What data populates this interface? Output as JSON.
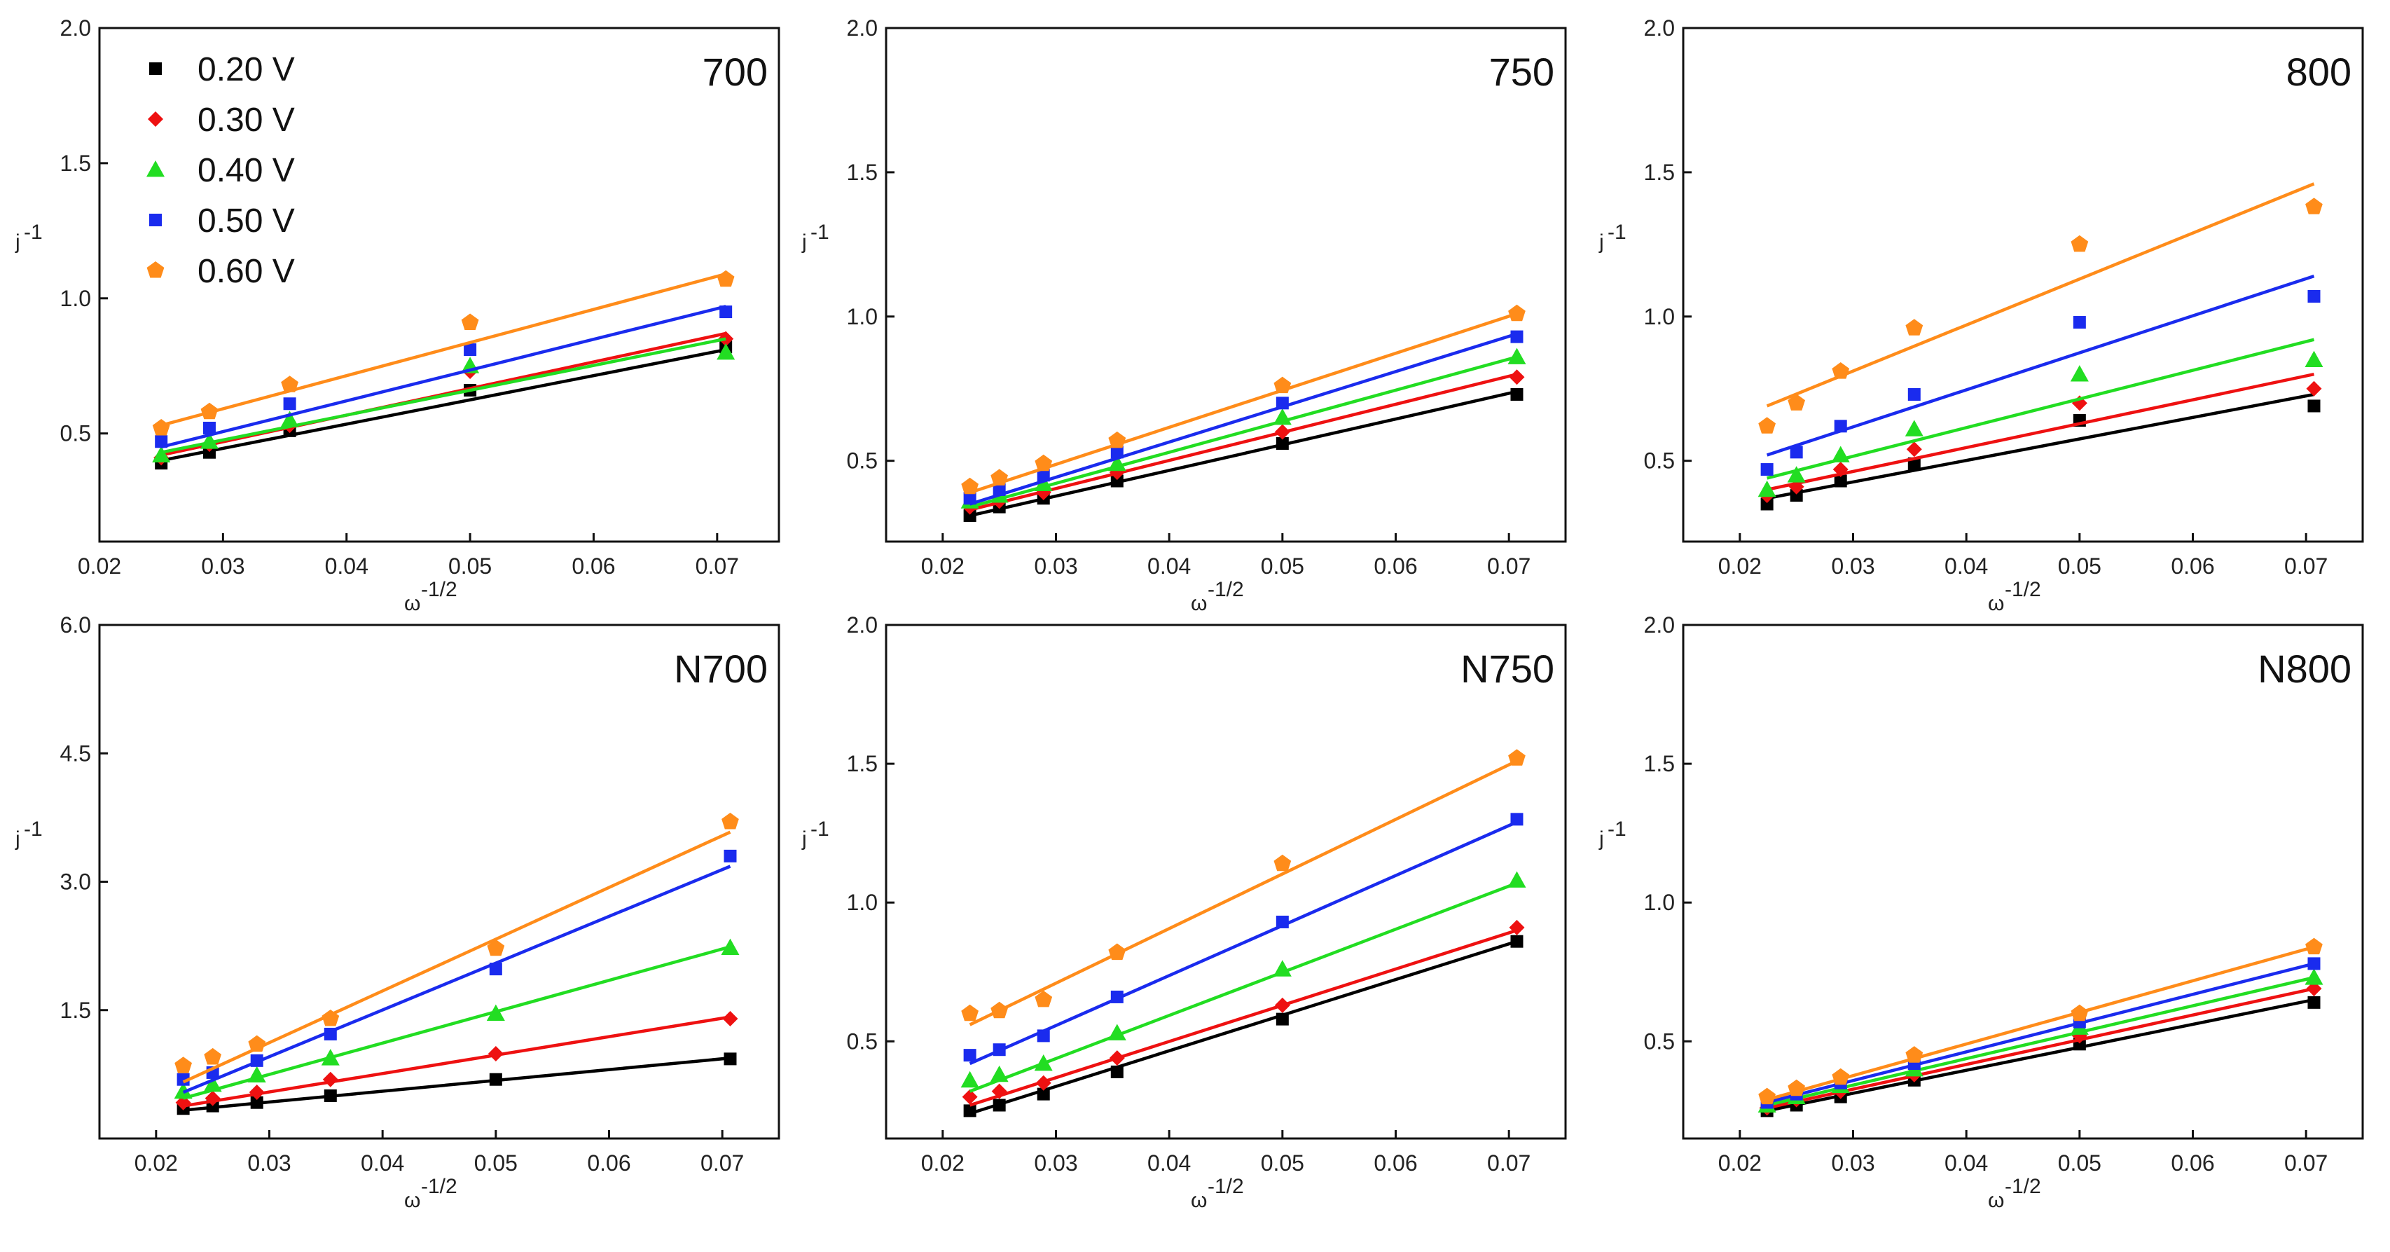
{
  "colors": {
    "0.20 V": "#000000",
    "0.30 V": "#ee1111",
    "0.40 V": "#22dd22",
    "0.50 V": "#1a2bee",
    "0.60 V": "#ff8c1a"
  },
  "legend": {
    "entries": [
      {
        "label": "0.20 V",
        "marker": "square"
      },
      {
        "label": "0.30 V",
        "marker": "diamond"
      },
      {
        "label": "0.40 V",
        "marker": "triangle"
      },
      {
        "label": "0.50 V",
        "marker": "square"
      },
      {
        "label": "0.60 V",
        "marker": "pentagon"
      }
    ]
  },
  "chart_data": [
    {
      "type": "scatter",
      "title": "700",
      "xlabel": "ω",
      "xlabel_sup": "-1/2",
      "ylabel": "j",
      "ylabel_sup": "-1",
      "xlim": [
        0.02,
        0.075
      ],
      "ylim": [
        0.1,
        2.0
      ],
      "xticks": [
        "0.02",
        "0.03",
        "0.04",
        "0.05",
        "0.06",
        "0.07"
      ],
      "yticks": [
        "0.5",
        "1.0",
        "1.5",
        "2.0"
      ],
      "x": [
        0.025,
        0.0289,
        0.0354,
        0.05,
        0.0707
      ],
      "series": [
        {
          "name": "0.20 V",
          "values": [
            0.39,
            0.43,
            0.51,
            0.66,
            0.82
          ],
          "fit": [
            [
              0.025,
              0.4
            ],
            [
              0.0707,
              0.81
            ]
          ]
        },
        {
          "name": "0.30 V",
          "values": [
            0.41,
            0.46,
            0.53,
            0.73,
            0.85
          ],
          "fit": [
            [
              0.025,
              0.42
            ],
            [
              0.0707,
              0.87
            ]
          ]
        },
        {
          "name": "0.40 V",
          "values": [
            0.42,
            0.47,
            0.55,
            0.75,
            0.8
          ],
          "fit": [
            [
              0.025,
              0.43
            ],
            [
              0.0707,
              0.85
            ]
          ]
        },
        {
          "name": "0.50 V",
          "values": [
            0.47,
            0.52,
            0.61,
            0.81,
            0.95
          ],
          "fit": [
            [
              0.025,
              0.45
            ],
            [
              0.0707,
              0.97
            ]
          ]
        },
        {
          "name": "0.60 V",
          "values": [
            0.52,
            0.58,
            0.68,
            0.91,
            1.07
          ],
          "fit": [
            [
              0.025,
              0.53
            ],
            [
              0.0707,
              1.09
            ]
          ]
        }
      ]
    },
    {
      "type": "scatter",
      "title": "750",
      "xlabel": "ω",
      "xlabel_sup": "-1/2",
      "ylabel": "j",
      "ylabel_sup": "-1",
      "xlim": [
        0.015,
        0.075
      ],
      "ylim": [
        0.22,
        2.0
      ],
      "xticks": [
        "0.02",
        "0.03",
        "0.04",
        "0.05",
        "0.06",
        "0.07"
      ],
      "yticks": [
        "0.5",
        "1.0",
        "1.5",
        "2.0"
      ],
      "x": [
        0.0224,
        0.025,
        0.0289,
        0.0354,
        0.05,
        0.0707
      ],
      "series": [
        {
          "name": "0.20 V",
          "values": [
            0.31,
            0.34,
            0.37,
            0.43,
            0.56,
            0.73
          ],
          "fit": [
            [
              0.0224,
              0.31
            ],
            [
              0.0707,
              0.74
            ]
          ]
        },
        {
          "name": "0.30 V",
          "values": [
            0.34,
            0.36,
            0.39,
            0.46,
            0.6,
            0.79
          ],
          "fit": [
            [
              0.0224,
              0.33
            ],
            [
              0.0707,
              0.8
            ]
          ]
        },
        {
          "name": "0.40 V",
          "values": [
            0.36,
            0.38,
            0.42,
            0.49,
            0.65,
            0.86
          ],
          "fit": [
            [
              0.0224,
              0.34
            ],
            [
              0.0707,
              0.86
            ]
          ]
        },
        {
          "name": "0.50 V",
          "values": [
            0.37,
            0.4,
            0.45,
            0.53,
            0.7,
            0.93
          ],
          "fit": [
            [
              0.0224,
              0.35
            ],
            [
              0.0707,
              0.94
            ]
          ]
        },
        {
          "name": "0.60 V",
          "values": [
            0.41,
            0.44,
            0.49,
            0.57,
            0.76,
            1.01
          ],
          "fit": [
            [
              0.0224,
              0.39
            ],
            [
              0.0707,
              1.01
            ]
          ]
        }
      ]
    },
    {
      "type": "scatter",
      "title": "800",
      "xlabel": "ω",
      "xlabel_sup": "-1/2",
      "ylabel": "j",
      "ylabel_sup": "-1",
      "xlim": [
        0.015,
        0.075
      ],
      "ylim": [
        0.22,
        2.0
      ],
      "xticks": [
        "0.02",
        "0.03",
        "0.04",
        "0.05",
        "0.06",
        "0.07"
      ],
      "yticks": [
        "0.5",
        "1.0",
        "1.5",
        "2.0"
      ],
      "x": [
        0.0224,
        0.025,
        0.0289,
        0.0354,
        0.05,
        0.0707
      ],
      "series": [
        {
          "name": "0.20 V",
          "values": [
            0.35,
            0.38,
            0.43,
            0.49,
            0.64,
            0.69
          ],
          "fit": [
            [
              0.0224,
              0.37
            ],
            [
              0.0707,
              0.73
            ]
          ]
        },
        {
          "name": "0.30 V",
          "values": [
            0.38,
            0.41,
            0.47,
            0.54,
            0.7,
            0.75
          ],
          "fit": [
            [
              0.0224,
              0.4
            ],
            [
              0.0707,
              0.8
            ]
          ]
        },
        {
          "name": "0.40 V",
          "values": [
            0.4,
            0.45,
            0.52,
            0.61,
            0.8,
            0.85
          ],
          "fit": [
            [
              0.0224,
              0.44
            ],
            [
              0.0707,
              0.92
            ]
          ]
        },
        {
          "name": "0.50 V",
          "values": [
            0.47,
            0.53,
            0.62,
            0.73,
            0.98,
            1.07
          ],
          "fit": [
            [
              0.0224,
              0.52
            ],
            [
              0.0707,
              1.14
            ]
          ]
        },
        {
          "name": "0.60 V",
          "values": [
            0.62,
            0.7,
            0.81,
            0.96,
            1.25,
            1.38
          ],
          "fit": [
            [
              0.0224,
              0.69
            ],
            [
              0.0707,
              1.46
            ]
          ]
        }
      ]
    },
    {
      "type": "scatter",
      "title": "N700",
      "xlabel": "ω",
      "xlabel_sup": "-1/2",
      "ylabel": "j",
      "ylabel_sup": "-1",
      "xlim": [
        0.015,
        0.075
      ],
      "ylim": [
        0.0,
        6.0
      ],
      "xticks": [
        "0.02",
        "0.03",
        "0.04",
        "0.05",
        "0.06",
        "0.07"
      ],
      "yticks": [
        "1.5",
        "3.0",
        "4.5",
        "6.0"
      ],
      "x": [
        0.0224,
        0.025,
        0.0289,
        0.0354,
        0.05,
        0.0707
      ],
      "series": [
        {
          "name": "0.20 V",
          "values": [
            0.35,
            0.38,
            0.42,
            0.5,
            0.69,
            0.93
          ],
          "fit": [
            [
              0.0224,
              0.33
            ],
            [
              0.0707,
              0.94
            ]
          ]
        },
        {
          "name": "0.30 V",
          "values": [
            0.42,
            0.47,
            0.54,
            0.69,
            0.99,
            1.4
          ],
          "fit": [
            [
              0.0224,
              0.38
            ],
            [
              0.0707,
              1.42
            ]
          ]
        },
        {
          "name": "0.40 V",
          "values": [
            0.55,
            0.63,
            0.74,
            0.94,
            1.46,
            2.23
          ],
          "fit": [
            [
              0.0224,
              0.47
            ],
            [
              0.0707,
              2.24
            ]
          ]
        },
        {
          "name": "0.50 V",
          "values": [
            0.69,
            0.77,
            0.91,
            1.22,
            1.98,
            3.3
          ],
          "fit": [
            [
              0.0224,
              0.54
            ],
            [
              0.0707,
              3.18
            ]
          ]
        },
        {
          "name": "0.60 V",
          "values": [
            0.85,
            0.95,
            1.1,
            1.4,
            2.22,
            3.7
          ],
          "fit": [
            [
              0.0224,
              0.66
            ],
            [
              0.0707,
              3.58
            ]
          ]
        }
      ]
    },
    {
      "type": "scatter",
      "title": "N750",
      "xlabel": "ω",
      "xlabel_sup": "-1/2",
      "ylabel": "j",
      "ylabel_sup": "-1",
      "xlim": [
        0.015,
        0.075
      ],
      "ylim": [
        0.15,
        2.0
      ],
      "xticks": [
        "0.02",
        "0.03",
        "0.04",
        "0.05",
        "0.06",
        "0.07"
      ],
      "yticks": [
        "0.5",
        "1.0",
        "1.5",
        "2.0"
      ],
      "x": [
        0.0224,
        0.025,
        0.0289,
        0.0354,
        0.05,
        0.0707
      ],
      "series": [
        {
          "name": "0.20 V",
          "values": [
            0.25,
            0.27,
            0.31,
            0.39,
            0.58,
            0.86
          ],
          "fit": [
            [
              0.0224,
              0.24
            ],
            [
              0.0707,
              0.86
            ]
          ]
        },
        {
          "name": "0.30 V",
          "values": [
            0.3,
            0.32,
            0.35,
            0.44,
            0.63,
            0.91
          ],
          "fit": [
            [
              0.0224,
              0.27
            ],
            [
              0.0707,
              0.9
            ]
          ]
        },
        {
          "name": "0.40 V",
          "values": [
            0.36,
            0.38,
            0.42,
            0.53,
            0.76,
            1.08
          ],
          "fit": [
            [
              0.0224,
              0.32
            ],
            [
              0.0707,
              1.07
            ]
          ]
        },
        {
          "name": "0.50 V",
          "values": [
            0.45,
            0.47,
            0.52,
            0.66,
            0.93,
            1.3
          ],
          "fit": [
            [
              0.0224,
              0.42
            ],
            [
              0.0707,
              1.29
            ]
          ]
        },
        {
          "name": "0.60 V",
          "values": [
            0.6,
            0.61,
            0.65,
            0.82,
            1.14,
            1.52
          ],
          "fit": [
            [
              0.0224,
              0.56
            ],
            [
              0.0707,
              1.51
            ]
          ]
        }
      ]
    },
    {
      "type": "scatter",
      "title": "N800",
      "xlabel": "ω",
      "xlabel_sup": "-1/2",
      "ylabel": "j",
      "ylabel_sup": "-1",
      "xlim": [
        0.015,
        0.075
      ],
      "ylim": [
        0.15,
        2.0
      ],
      "xticks": [
        "0.02",
        "0.03",
        "0.04",
        "0.05",
        "0.06",
        "0.07"
      ],
      "yticks": [
        "0.5",
        "1.0",
        "1.5",
        "2.0"
      ],
      "x": [
        0.0224,
        0.025,
        0.0289,
        0.0354,
        0.05,
        0.0707
      ],
      "series": [
        {
          "name": "0.20 V",
          "values": [
            0.25,
            0.27,
            0.3,
            0.36,
            0.49,
            0.64
          ],
          "fit": [
            [
              0.0224,
              0.25
            ],
            [
              0.0707,
              0.65
            ]
          ]
        },
        {
          "name": "0.30 V",
          "values": [
            0.26,
            0.29,
            0.32,
            0.38,
            0.52,
            0.69
          ],
          "fit": [
            [
              0.0224,
              0.26
            ],
            [
              0.0707,
              0.69
            ]
          ]
        },
        {
          "name": "0.40 V",
          "values": [
            0.27,
            0.3,
            0.34,
            0.4,
            0.55,
            0.73
          ],
          "fit": [
            [
              0.0224,
              0.27
            ],
            [
              0.0707,
              0.73
            ]
          ]
        },
        {
          "name": "0.50 V",
          "values": [
            0.28,
            0.31,
            0.35,
            0.42,
            0.57,
            0.78
          ],
          "fit": [
            [
              0.0224,
              0.28
            ],
            [
              0.0707,
              0.78
            ]
          ]
        },
        {
          "name": "0.60 V",
          "values": [
            0.3,
            0.33,
            0.37,
            0.45,
            0.6,
            0.84
          ],
          "fit": [
            [
              0.0224,
              0.29
            ],
            [
              0.0707,
              0.84
            ]
          ]
        }
      ]
    }
  ]
}
